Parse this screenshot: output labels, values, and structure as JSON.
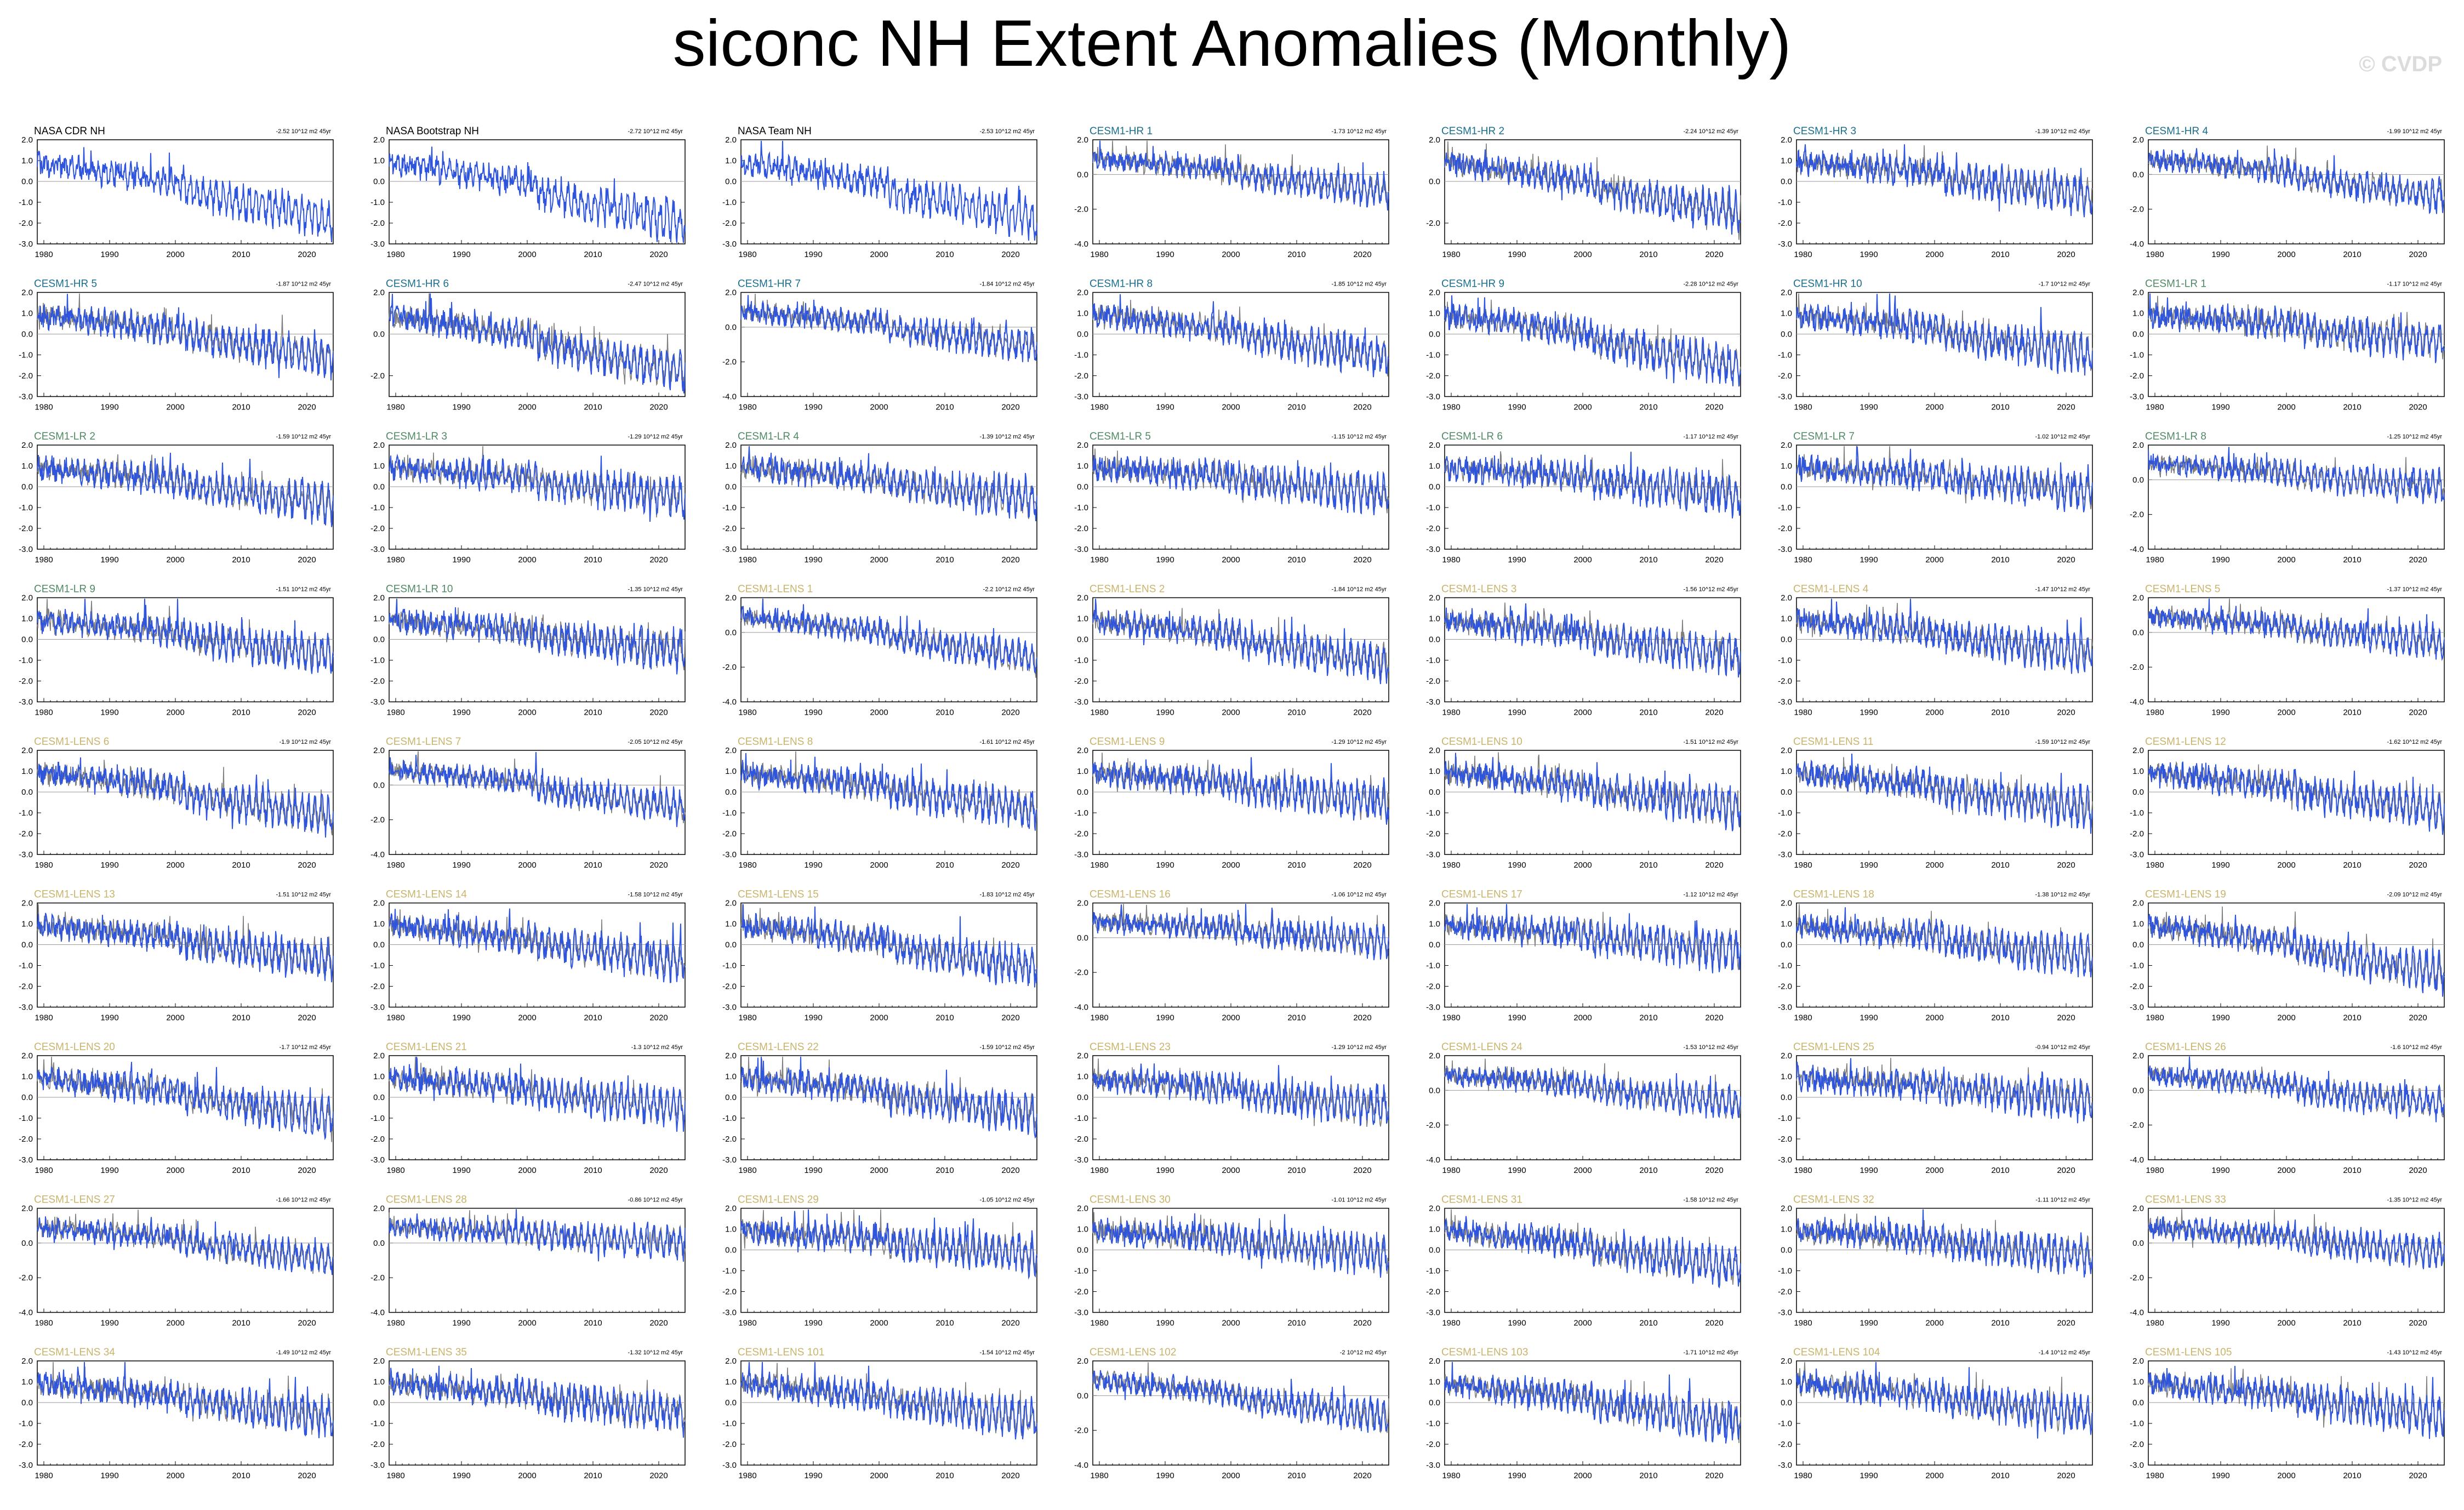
{
  "title": "siconc NH Extent Anomalies (Monthly)",
  "watermark": "© CVDP",
  "colors": {
    "model_line": "#3055dd",
    "obs_line": "#7f7f7f",
    "obs_title": "#000000",
    "hr_title": "#1a6f8f",
    "lr_title": "#4f8a64",
    "lens_title": "#c9b46b",
    "zero_line": "#999999"
  },
  "chart_data": {
    "type": "line",
    "x_ticks": [
      "1980",
      "1990",
      "2000",
      "2010",
      "2020"
    ],
    "xlim": [
      1979,
      2024
    ],
    "trend_units": "10^12 m2 45yr",
    "panels": [
      {
        "title": "NASA CDR NH",
        "group": "obs",
        "trend": "-2.52",
        "yticks": [
          "2.0",
          "1.0",
          "0.0",
          "-1.0",
          "-2.0",
          "-3.0"
        ],
        "ylim": [
          -3,
          2
        ]
      },
      {
        "title": "NASA Bootstrap NH",
        "group": "obs",
        "trend": "-2.72",
        "yticks": [
          "2.0",
          "1.0",
          "0.0",
          "-1.0",
          "-2.0",
          "-3.0"
        ],
        "ylim": [
          -3,
          2
        ]
      },
      {
        "title": "NASA Team NH",
        "group": "obs",
        "trend": "-2.53",
        "yticks": [
          "2.0",
          "1.0",
          "0.0",
          "-1.0",
          "-2.0",
          "-3.0"
        ],
        "ylim": [
          -3,
          2
        ]
      },
      {
        "title": "CESM1-HR 1",
        "group": "hr",
        "trend": "-1.73",
        "yticks": [
          "2.0",
          "0.0",
          "-2.0",
          "-4.0"
        ],
        "ylim": [
          -4,
          2
        ]
      },
      {
        "title": "CESM1-HR 2",
        "group": "hr",
        "trend": "-2.24",
        "yticks": [
          "2.0",
          "0.0",
          "-2.0"
        ],
        "ylim": [
          -3,
          2
        ]
      },
      {
        "title": "CESM1-HR 3",
        "group": "hr",
        "trend": "-1.39",
        "yticks": [
          "2.0",
          "1.0",
          "0.0",
          "-1.0",
          "-2.0",
          "-3.0"
        ],
        "ylim": [
          -3,
          2
        ]
      },
      {
        "title": "CESM1-HR 4",
        "group": "hr",
        "trend": "-1.99",
        "yticks": [
          "2.0",
          "0.0",
          "-2.0",
          "-4.0"
        ],
        "ylim": [
          -4,
          2
        ]
      },
      {
        "title": "CESM1-HR 5",
        "group": "hr",
        "trend": "-1.87",
        "yticks": [
          "2.0",
          "1.0",
          "0.0",
          "-1.0",
          "-2.0",
          "-3.0"
        ],
        "ylim": [
          -3,
          2
        ]
      },
      {
        "title": "CESM1-HR 6",
        "group": "hr",
        "trend": "-2.47",
        "yticks": [
          "2.0",
          "0.0",
          "-2.0"
        ],
        "ylim": [
          -3,
          2
        ]
      },
      {
        "title": "CESM1-HR 7",
        "group": "hr",
        "trend": "-1.84",
        "yticks": [
          "2.0",
          "0.0",
          "-2.0",
          "-4.0"
        ],
        "ylim": [
          -4,
          2
        ]
      },
      {
        "title": "CESM1-HR 8",
        "group": "hr",
        "trend": "-1.85",
        "yticks": [
          "2.0",
          "1.0",
          "0.0",
          "-1.0",
          "-2.0",
          "-3.0"
        ],
        "ylim": [
          -3,
          2
        ]
      },
      {
        "title": "CESM1-HR 9",
        "group": "hr",
        "trend": "-2.28",
        "yticks": [
          "2.0",
          "1.0",
          "0.0",
          "-1.0",
          "-2.0",
          "-3.0"
        ],
        "ylim": [
          -3,
          2
        ]
      },
      {
        "title": "CESM1-HR 10",
        "group": "hr",
        "trend": "-1.7",
        "yticks": [
          "2.0",
          "1.0",
          "0.0",
          "-1.0",
          "-2.0",
          "-3.0"
        ],
        "ylim": [
          -3,
          2
        ]
      },
      {
        "title": "CESM1-LR 1",
        "group": "lr",
        "trend": "-1.17",
        "yticks": [
          "2.0",
          "1.0",
          "0.0",
          "-1.0",
          "-2.0",
          "-3.0"
        ],
        "ylim": [
          -3,
          2
        ]
      },
      {
        "title": "CESM1-LR 2",
        "group": "lr",
        "trend": "-1.59",
        "yticks": [
          "2.0",
          "1.0",
          "0.0",
          "-1.0",
          "-2.0",
          "-3.0"
        ],
        "ylim": [
          -3,
          2
        ]
      },
      {
        "title": "CESM1-LR 3",
        "group": "lr",
        "trend": "-1.29",
        "yticks": [
          "2.0",
          "1.0",
          "0.0",
          "-1.0",
          "-2.0",
          "-3.0"
        ],
        "ylim": [
          -3,
          2
        ]
      },
      {
        "title": "CESM1-LR 4",
        "group": "lr",
        "trend": "-1.39",
        "yticks": [
          "2.0",
          "1.0",
          "0.0",
          "-1.0",
          "-2.0",
          "-3.0"
        ],
        "ylim": [
          -3,
          2
        ]
      },
      {
        "title": "CESM1-LR 5",
        "group": "lr",
        "trend": "-1.15",
        "yticks": [
          "2.0",
          "1.0",
          "0.0",
          "-1.0",
          "-2.0",
          "-3.0"
        ],
        "ylim": [
          -3,
          2
        ]
      },
      {
        "title": "CESM1-LR 6",
        "group": "lr",
        "trend": "-1.17",
        "yticks": [
          "2.0",
          "1.0",
          "0.0",
          "-1.0",
          "-2.0",
          "-3.0"
        ],
        "ylim": [
          -3,
          2
        ]
      },
      {
        "title": "CESM1-LR 7",
        "group": "lr",
        "trend": "-1.02",
        "yticks": [
          "2.0",
          "1.0",
          "0.0",
          "-1.0",
          "-2.0",
          "-3.0"
        ],
        "ylim": [
          -3,
          2
        ]
      },
      {
        "title": "CESM1-LR 8",
        "group": "lr",
        "trend": "-1.25",
        "yticks": [
          "2.0",
          "0.0",
          "-2.0",
          "-4.0"
        ],
        "ylim": [
          -4,
          2
        ]
      },
      {
        "title": "CESM1-LR 9",
        "group": "lr",
        "trend": "-1.51",
        "yticks": [
          "2.0",
          "1.0",
          "0.0",
          "-1.0",
          "-2.0",
          "-3.0"
        ],
        "ylim": [
          -3,
          2
        ]
      },
      {
        "title": "CESM1-LR 10",
        "group": "lr",
        "trend": "-1.35",
        "yticks": [
          "2.0",
          "1.0",
          "0.0",
          "-1.0",
          "-2.0",
          "-3.0"
        ],
        "ylim": [
          -3,
          2
        ]
      },
      {
        "title": "CESM1-LENS 1",
        "group": "lens",
        "trend": "-2.2",
        "yticks": [
          "2.0",
          "0.0",
          "-2.0",
          "-4.0"
        ],
        "ylim": [
          -4,
          2
        ]
      },
      {
        "title": "CESM1-LENS 2",
        "group": "lens",
        "trend": "-1.84",
        "yticks": [
          "2.0",
          "1.0",
          "0.0",
          "-1.0",
          "-2.0",
          "-3.0"
        ],
        "ylim": [
          -3,
          2
        ]
      },
      {
        "title": "CESM1-LENS 3",
        "group": "lens",
        "trend": "-1.56",
        "yticks": [
          "2.0",
          "1.0",
          "0.0",
          "-1.0",
          "-2.0",
          "-3.0"
        ],
        "ylim": [
          -3,
          2
        ]
      },
      {
        "title": "CESM1-LENS 4",
        "group": "lens",
        "trend": "-1.47",
        "yticks": [
          "2.0",
          "1.0",
          "0.0",
          "-1.0",
          "-2.0",
          "-3.0"
        ],
        "ylim": [
          -3,
          2
        ]
      },
      {
        "title": "CESM1-LENS 5",
        "group": "lens",
        "trend": "-1.37",
        "yticks": [
          "2.0",
          "0.0",
          "-2.0",
          "-4.0"
        ],
        "ylim": [
          -4,
          2
        ]
      },
      {
        "title": "CESM1-LENS 6",
        "group": "lens",
        "trend": "-1.9",
        "yticks": [
          "2.0",
          "1.0",
          "0.0",
          "-1.0",
          "-2.0",
          "-3.0"
        ],
        "ylim": [
          -3,
          2
        ]
      },
      {
        "title": "CESM1-LENS 7",
        "group": "lens",
        "trend": "-2.05",
        "yticks": [
          "2.0",
          "0.0",
          "-2.0",
          "-4.0"
        ],
        "ylim": [
          -4,
          2
        ]
      },
      {
        "title": "CESM1-LENS 8",
        "group": "lens",
        "trend": "-1.61",
        "yticks": [
          "2.0",
          "1.0",
          "0.0",
          "-1.0",
          "-2.0",
          "-3.0"
        ],
        "ylim": [
          -3,
          2
        ]
      },
      {
        "title": "CESM1-LENS 9",
        "group": "lens",
        "trend": "-1.29",
        "yticks": [
          "2.0",
          "1.0",
          "0.0",
          "-1.0",
          "-2.0",
          "-3.0"
        ],
        "ylim": [
          -3,
          2
        ]
      },
      {
        "title": "CESM1-LENS 10",
        "group": "lens",
        "trend": "-1.51",
        "yticks": [
          "2.0",
          "1.0",
          "0.0",
          "-1.0",
          "-2.0",
          "-3.0"
        ],
        "ylim": [
          -3,
          2
        ]
      },
      {
        "title": "CESM1-LENS 11",
        "group": "lens",
        "trend": "-1.59",
        "yticks": [
          "2.0",
          "1.0",
          "0.0",
          "-1.0",
          "-2.0",
          "-3.0"
        ],
        "ylim": [
          -3,
          2
        ]
      },
      {
        "title": "CESM1-LENS 12",
        "group": "lens",
        "trend": "-1.62",
        "yticks": [
          "2.0",
          "1.0",
          "0.0",
          "-1.0",
          "-2.0",
          "-3.0"
        ],
        "ylim": [
          -3,
          2
        ]
      },
      {
        "title": "CESM1-LENS 13",
        "group": "lens",
        "trend": "-1.51",
        "yticks": [
          "2.0",
          "1.0",
          "0.0",
          "-1.0",
          "-2.0",
          "-3.0"
        ],
        "ylim": [
          -3,
          2
        ]
      },
      {
        "title": "CESM1-LENS 14",
        "group": "lens",
        "trend": "-1.58",
        "yticks": [
          "2.0",
          "1.0",
          "0.0",
          "-1.0",
          "-2.0",
          "-3.0"
        ],
        "ylim": [
          -3,
          2
        ]
      },
      {
        "title": "CESM1-LENS 15",
        "group": "lens",
        "trend": "-1.83",
        "yticks": [
          "2.0",
          "1.0",
          "0.0",
          "-1.0",
          "-2.0",
          "-3.0"
        ],
        "ylim": [
          -3,
          2
        ]
      },
      {
        "title": "CESM1-LENS 16",
        "group": "lens",
        "trend": "-1.06",
        "yticks": [
          "2.0",
          "0.0",
          "-2.0",
          "-4.0"
        ],
        "ylim": [
          -4,
          2
        ]
      },
      {
        "title": "CESM1-LENS 17",
        "group": "lens",
        "trend": "-1.12",
        "yticks": [
          "2.0",
          "1.0",
          "0.0",
          "-1.0",
          "-2.0",
          "-3.0"
        ],
        "ylim": [
          -3,
          2
        ]
      },
      {
        "title": "CESM1-LENS 18",
        "group": "lens",
        "trend": "-1.38",
        "yticks": [
          "2.0",
          "1.0",
          "0.0",
          "-1.0",
          "-2.0",
          "-3.0"
        ],
        "ylim": [
          -3,
          2
        ]
      },
      {
        "title": "CESM1-LENS 19",
        "group": "lens",
        "trend": "-2.09",
        "yticks": [
          "2.0",
          "1.0",
          "0.0",
          "-1.0",
          "-2.0",
          "-3.0"
        ],
        "ylim": [
          -3,
          2
        ]
      },
      {
        "title": "CESM1-LENS 20",
        "group": "lens",
        "trend": "-1.7",
        "yticks": [
          "2.0",
          "1.0",
          "0.0",
          "-1.0",
          "-2.0",
          "-3.0"
        ],
        "ylim": [
          -3,
          2
        ]
      },
      {
        "title": "CESM1-LENS 21",
        "group": "lens",
        "trend": "-1.3",
        "yticks": [
          "2.0",
          "1.0",
          "0.0",
          "-1.0",
          "-2.0",
          "-3.0"
        ],
        "ylim": [
          -3,
          2
        ]
      },
      {
        "title": "CESM1-LENS 22",
        "group": "lens",
        "trend": "-1.59",
        "yticks": [
          "2.0",
          "1.0",
          "0.0",
          "-1.0",
          "-2.0",
          "-3.0"
        ],
        "ylim": [
          -3,
          2
        ]
      },
      {
        "title": "CESM1-LENS 23",
        "group": "lens",
        "trend": "-1.29",
        "yticks": [
          "2.0",
          "1.0",
          "0.0",
          "-1.0",
          "-2.0",
          "-3.0"
        ],
        "ylim": [
          -3,
          2
        ]
      },
      {
        "title": "CESM1-LENS 24",
        "group": "lens",
        "trend": "-1.53",
        "yticks": [
          "2.0",
          "0.0",
          "-2.0",
          "-4.0"
        ],
        "ylim": [
          -4,
          2
        ]
      },
      {
        "title": "CESM1-LENS 25",
        "group": "lens",
        "trend": "-0.94",
        "yticks": [
          "2.0",
          "1.0",
          "0.0",
          "-1.0",
          "-2.0",
          "-3.0"
        ],
        "ylim": [
          -3,
          2
        ]
      },
      {
        "title": "CESM1-LENS 26",
        "group": "lens",
        "trend": "-1.6",
        "yticks": [
          "2.0",
          "0.0",
          "-2.0",
          "-4.0"
        ],
        "ylim": [
          -4,
          2
        ]
      },
      {
        "title": "CESM1-LENS 27",
        "group": "lens",
        "trend": "-1.66",
        "yticks": [
          "2.0",
          "0.0",
          "-2.0",
          "-4.0"
        ],
        "ylim": [
          -4,
          2
        ]
      },
      {
        "title": "CESM1-LENS 28",
        "group": "lens",
        "trend": "-0.86",
        "yticks": [
          "2.0",
          "0.0",
          "-2.0",
          "-4.0"
        ],
        "ylim": [
          -4,
          2
        ]
      },
      {
        "title": "CESM1-LENS 29",
        "group": "lens",
        "trend": "-1.05",
        "yticks": [
          "2.0",
          "1.0",
          "0.0",
          "-1.0",
          "-2.0",
          "-3.0"
        ],
        "ylim": [
          -3,
          2
        ]
      },
      {
        "title": "CESM1-LENS 30",
        "group": "lens",
        "trend": "-1.01",
        "yticks": [
          "2.0",
          "1.0",
          "0.0",
          "-1.0",
          "-2.0",
          "-3.0"
        ],
        "ylim": [
          -3,
          2
        ]
      },
      {
        "title": "CESM1-LENS 31",
        "group": "lens",
        "trend": "-1.58",
        "yticks": [
          "2.0",
          "1.0",
          "0.0",
          "-1.0",
          "-2.0",
          "-3.0"
        ],
        "ylim": [
          -3,
          2
        ]
      },
      {
        "title": "CESM1-LENS 32",
        "group": "lens",
        "trend": "-1.11",
        "yticks": [
          "2.0",
          "1.0",
          "0.0",
          "-1.0",
          "-2.0",
          "-3.0"
        ],
        "ylim": [
          -3,
          2
        ]
      },
      {
        "title": "CESM1-LENS 33",
        "group": "lens",
        "trend": "-1.35",
        "yticks": [
          "2.0",
          "0.0",
          "-2.0",
          "-4.0"
        ],
        "ylim": [
          -4,
          2
        ]
      },
      {
        "title": "CESM1-LENS 34",
        "group": "lens",
        "trend": "-1.49",
        "yticks": [
          "2.0",
          "1.0",
          "0.0",
          "-1.0",
          "-2.0",
          "-3.0"
        ],
        "ylim": [
          -3,
          2
        ]
      },
      {
        "title": "CESM1-LENS 35",
        "group": "lens",
        "trend": "-1.32",
        "yticks": [
          "2.0",
          "1.0",
          "0.0",
          "-1.0",
          "-2.0",
          "-3.0"
        ],
        "ylim": [
          -3,
          2
        ]
      },
      {
        "title": "CESM1-LENS 101",
        "group": "lens",
        "trend": "-1.54",
        "yticks": [
          "2.0",
          "1.0",
          "0.0",
          "-1.0",
          "-2.0",
          "-3.0"
        ],
        "ylim": [
          -3,
          2
        ]
      },
      {
        "title": "CESM1-LENS 102",
        "group": "lens",
        "trend": "-2",
        "yticks": [
          "2.0",
          "0.0",
          "-2.0",
          "-4.0"
        ],
        "ylim": [
          -4,
          2
        ]
      },
      {
        "title": "CESM1-LENS 103",
        "group": "lens",
        "trend": "-1.71",
        "yticks": [
          "2.0",
          "1.0",
          "0.0",
          "-1.0",
          "-2.0",
          "-3.0"
        ],
        "ylim": [
          -3,
          2
        ]
      },
      {
        "title": "CESM1-LENS 104",
        "group": "lens",
        "trend": "-1.4",
        "yticks": [
          "2.0",
          "1.0",
          "0.0",
          "-1.0",
          "-2.0",
          "-3.0"
        ],
        "ylim": [
          -3,
          2
        ]
      },
      {
        "title": "CESM1-LENS 105",
        "group": "lens",
        "trend": "-1.43",
        "yticks": [
          "2.0",
          "1.0",
          "0.0",
          "-1.0",
          "-2.0",
          "-3.0"
        ],
        "ylim": [
          -3,
          2
        ]
      }
    ]
  }
}
